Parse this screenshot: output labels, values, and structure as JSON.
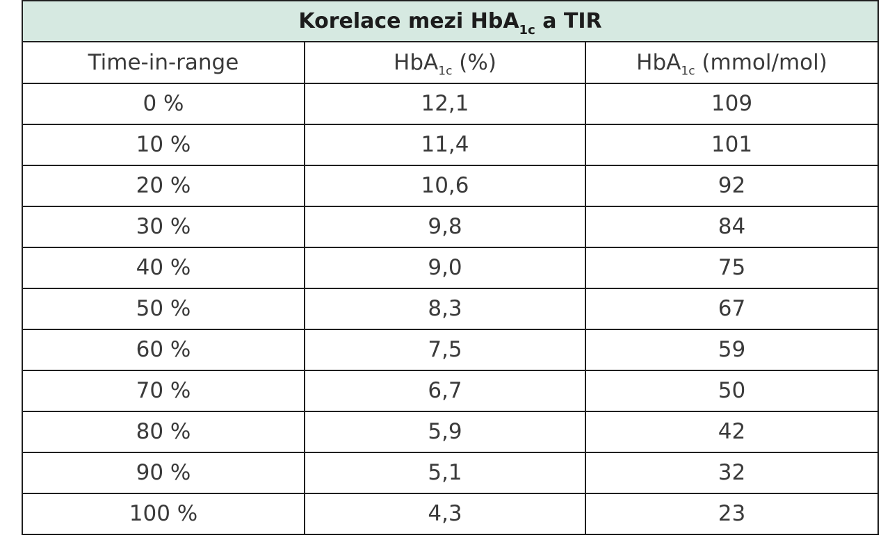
{
  "title": {
    "prefix": "Korelace mezi HbA",
    "subscript": "1c",
    "suffix": " a TIR"
  },
  "columns": [
    {
      "label": "Time-in-range",
      "subscript": "",
      "suffix": ""
    },
    {
      "label": "HbA",
      "subscript": "1c",
      "suffix": " (%)"
    },
    {
      "label": "HbA",
      "subscript": "1c",
      "suffix": " (mmol/mol)"
    }
  ],
  "rows": [
    {
      "tir": "0 %",
      "hba1c_pct": "12,1",
      "hba1c_mmol": "109"
    },
    {
      "tir": "10 %",
      "hba1c_pct": "11,4",
      "hba1c_mmol": "101"
    },
    {
      "tir": "20 %",
      "hba1c_pct": "10,6",
      "hba1c_mmol": "92"
    },
    {
      "tir": "30 %",
      "hba1c_pct": "9,8",
      "hba1c_mmol": "84"
    },
    {
      "tir": "40 %",
      "hba1c_pct": "9,0",
      "hba1c_mmol": "75"
    },
    {
      "tir": "50 %",
      "hba1c_pct": "8,3",
      "hba1c_mmol": "67"
    },
    {
      "tir": "60 %",
      "hba1c_pct": "7,5",
      "hba1c_mmol": "59"
    },
    {
      "tir": "70 %",
      "hba1c_pct": "6,7",
      "hba1c_mmol": "50"
    },
    {
      "tir": "80 %",
      "hba1c_pct": "5,9",
      "hba1c_mmol": "42"
    },
    {
      "tir": "90 %",
      "hba1c_pct": "5,1",
      "hba1c_mmol": "32"
    },
    {
      "tir": "100 %",
      "hba1c_pct": "4,3",
      "hba1c_mmol": "23"
    }
  ],
  "colors": {
    "title_background": "#d6e9e1",
    "border": "#1f1f1f",
    "text": "#3a3a3a"
  }
}
